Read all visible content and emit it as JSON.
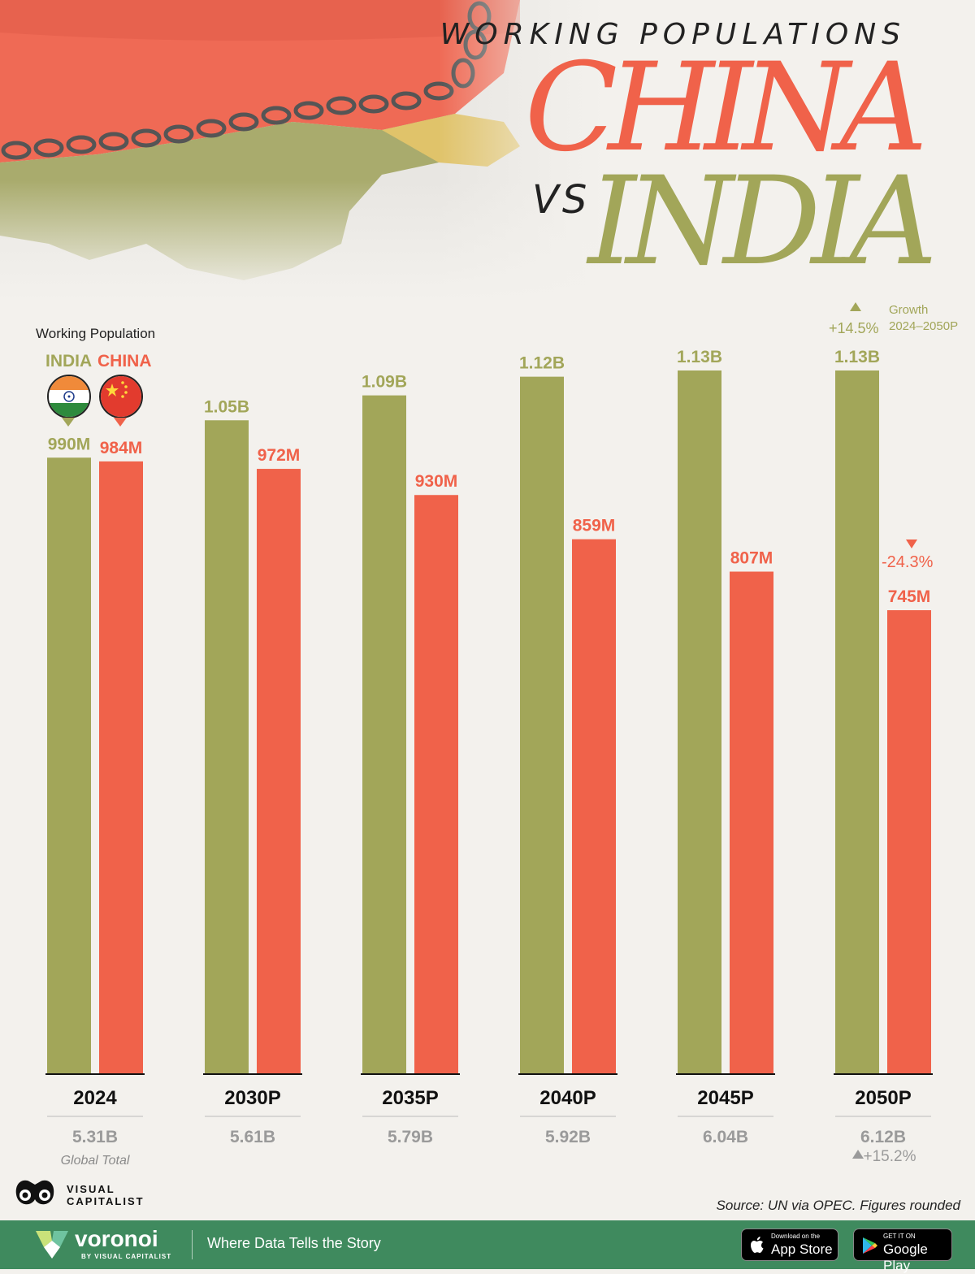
{
  "header": {
    "subtitle": "WORKING POPULATIONS",
    "title_china": "CHINA",
    "title_vs": "VS",
    "title_india": "INDIA"
  },
  "legend": {
    "title": "Working Population",
    "india_label": "INDIA",
    "china_label": "CHINA"
  },
  "colors": {
    "india": "#a2a659",
    "china": "#f0624a",
    "footer": "#3f8a5e"
  },
  "annotations": {
    "india_growth": "+14.5%",
    "india_growth_label_line1": "Growth",
    "india_growth_label_line2": "2024–2050P",
    "china_growth": "-24.3%",
    "global_total_label": "Global Total",
    "global_growth": "+15.2%"
  },
  "chart_data": {
    "type": "bar",
    "categories": [
      "2024",
      "2030P",
      "2035P",
      "2040P",
      "2045P",
      "2050P"
    ],
    "series": [
      {
        "name": "INDIA",
        "values": [
          990,
          1050,
          1090,
          1120,
          1130,
          1130
        ],
        "labels": [
          "990M",
          "1.05B",
          "1.09B",
          "1.12B",
          "1.13B",
          "1.13B"
        ]
      },
      {
        "name": "CHINA",
        "values": [
          984,
          972,
          930,
          859,
          807,
          745
        ],
        "labels": [
          "984M",
          "972M",
          "930M",
          "859M",
          "807M",
          "745M"
        ]
      }
    ],
    "global_totals": [
      "5.31B",
      "5.61B",
      "5.79B",
      "5.92B",
      "6.04B",
      "6.12B"
    ],
    "unit": "millions",
    "ylim": [
      0,
      1150
    ]
  },
  "source": "Source: UN via OPEC. Figures rounded",
  "branding": {
    "vc_line1": "VISUAL",
    "vc_line2": "CAPITALIST",
    "voronoi_name": "voronoi",
    "voronoi_sub": "BY VISUAL CAPITALIST",
    "tagline": "Where Data Tells the Story",
    "app_store_small": "Download on the",
    "app_store_big": "App Store",
    "google_play_small": "GET IT ON",
    "google_play_big": "Google Play"
  }
}
